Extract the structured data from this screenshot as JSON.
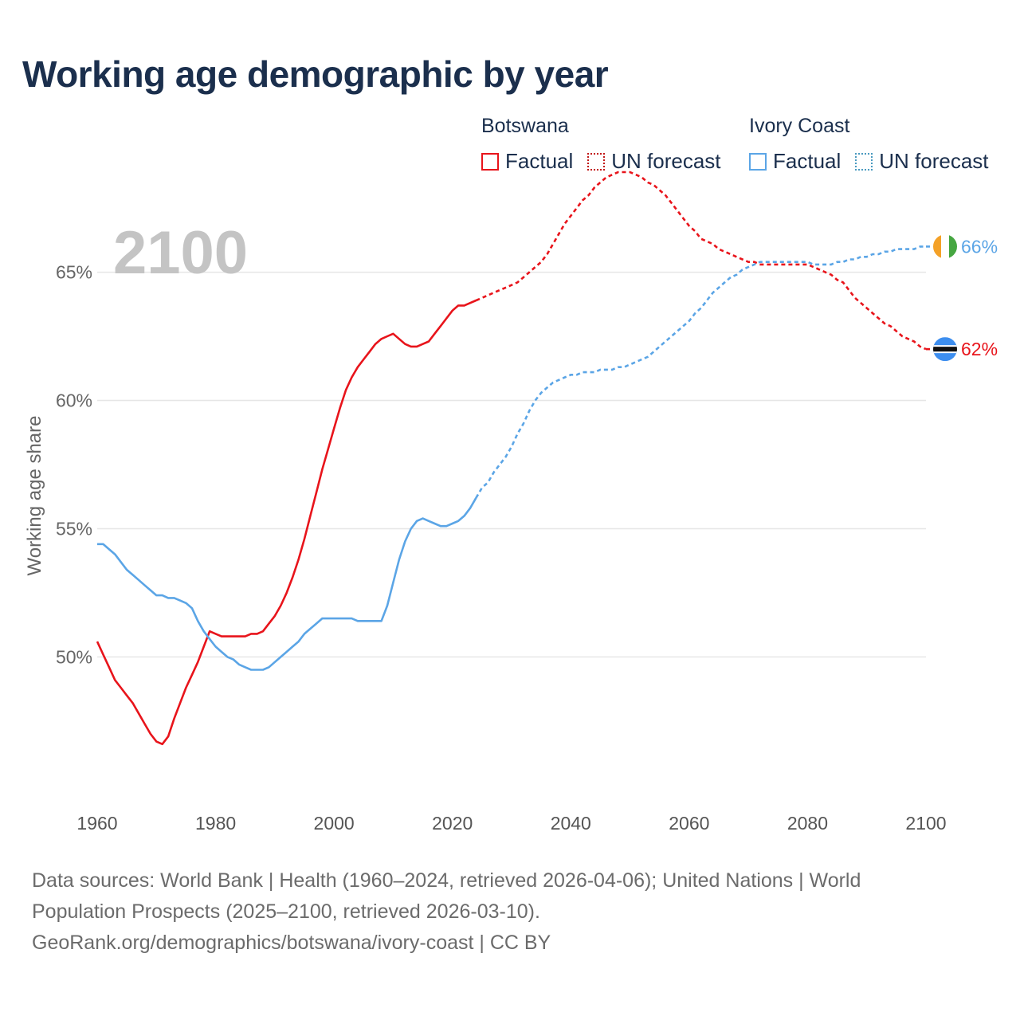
{
  "header": {
    "title": "Working age demographic by year"
  },
  "legend": {
    "groups": [
      {
        "country": "Botswana",
        "factual_label": "Factual",
        "forecast_label": "UN forecast",
        "color": "#e8141b"
      },
      {
        "country": "Ivory Coast",
        "factual_label": "Factual",
        "forecast_label": "UN forecast",
        "color": "#5ba5e6"
      }
    ]
  },
  "footer": {
    "line1": "Data sources: World Bank | Health (1960–2024, retrieved 2026-04-06); United Nations | World",
    "line2": "Population Prospects (2025–2100, retrieved 2026-03-10).",
    "line3": "GeoRank.org/demographics/botswana/ivory-coast | CC BY"
  },
  "chart_data": {
    "type": "line",
    "title": "Working age demographic by year",
    "ylabel": "Working age share",
    "xlabel": "",
    "year_watermark": "2100",
    "xlim": [
      1960,
      2100
    ],
    "ylim": [
      44.7,
      68.0
    ],
    "x_ticks": [
      {
        "value": 1960,
        "label": "1960"
      },
      {
        "value": 1980,
        "label": "1980"
      },
      {
        "value": 2000,
        "label": "2000"
      },
      {
        "value": 2020,
        "label": "2020"
      },
      {
        "value": 2040,
        "label": "2040"
      },
      {
        "value": 2060,
        "label": "2060"
      },
      {
        "value": 2080,
        "label": "2080"
      },
      {
        "value": 2100,
        "label": "2100"
      }
    ],
    "y_ticks": [
      {
        "value": 50,
        "label": "50%"
      },
      {
        "value": 55,
        "label": "55%"
      },
      {
        "value": 60,
        "label": "60%"
      },
      {
        "value": 65,
        "label": "65%"
      }
    ],
    "forecast_start": 2024,
    "series": [
      {
        "name": "Botswana",
        "color": "#e8141b",
        "end_label": "62%",
        "flag": "botswana",
        "points": [
          [
            1960,
            50.6
          ],
          [
            1961,
            50.1
          ],
          [
            1962,
            49.6
          ],
          [
            1963,
            49.1
          ],
          [
            1964,
            48.8
          ],
          [
            1965,
            48.5
          ],
          [
            1966,
            48.2
          ],
          [
            1967,
            47.8
          ],
          [
            1968,
            47.4
          ],
          [
            1969,
            47.0
          ],
          [
            1970,
            46.7
          ],
          [
            1971,
            46.6
          ],
          [
            1972,
            46.9
          ],
          [
            1973,
            47.6
          ],
          [
            1974,
            48.2
          ],
          [
            1975,
            48.8
          ],
          [
            1976,
            49.3
          ],
          [
            1977,
            49.8
          ],
          [
            1978,
            50.4
          ],
          [
            1979,
            51.0
          ],
          [
            1980,
            50.9
          ],
          [
            1981,
            50.8
          ],
          [
            1982,
            50.8
          ],
          [
            1983,
            50.8
          ],
          [
            1984,
            50.8
          ],
          [
            1985,
            50.8
          ],
          [
            1986,
            50.9
          ],
          [
            1987,
            50.9
          ],
          [
            1988,
            51.0
          ],
          [
            1989,
            51.3
          ],
          [
            1990,
            51.6
          ],
          [
            1991,
            52.0
          ],
          [
            1992,
            52.5
          ],
          [
            1993,
            53.1
          ],
          [
            1994,
            53.8
          ],
          [
            1995,
            54.6
          ],
          [
            1996,
            55.5
          ],
          [
            1997,
            56.4
          ],
          [
            1998,
            57.3
          ],
          [
            1999,
            58.1
          ],
          [
            2000,
            58.9
          ],
          [
            2001,
            59.7
          ],
          [
            2002,
            60.4
          ],
          [
            2003,
            60.9
          ],
          [
            2004,
            61.3
          ],
          [
            2005,
            61.6
          ],
          [
            2006,
            61.9
          ],
          [
            2007,
            62.2
          ],
          [
            2008,
            62.4
          ],
          [
            2009,
            62.5
          ],
          [
            2010,
            62.6
          ],
          [
            2011,
            62.4
          ],
          [
            2012,
            62.2
          ],
          [
            2013,
            62.1
          ],
          [
            2014,
            62.1
          ],
          [
            2015,
            62.2
          ],
          [
            2016,
            62.3
          ],
          [
            2017,
            62.6
          ],
          [
            2018,
            62.9
          ],
          [
            2019,
            63.2
          ],
          [
            2020,
            63.5
          ],
          [
            2021,
            63.7
          ],
          [
            2022,
            63.7
          ],
          [
            2023,
            63.8
          ],
          [
            2024,
            63.9
          ],
          [
            2025,
            64.0
          ],
          [
            2026,
            64.1
          ],
          [
            2027,
            64.2
          ],
          [
            2028,
            64.3
          ],
          [
            2029,
            64.4
          ],
          [
            2030,
            64.5
          ],
          [
            2031,
            64.6
          ],
          [
            2032,
            64.8
          ],
          [
            2033,
            65.0
          ],
          [
            2034,
            65.2
          ],
          [
            2035,
            65.4
          ],
          [
            2036,
            65.7
          ],
          [
            2037,
            66.1
          ],
          [
            2038,
            66.5
          ],
          [
            2039,
            66.9
          ],
          [
            2040,
            67.2
          ],
          [
            2041,
            67.5
          ],
          [
            2042,
            67.8
          ],
          [
            2043,
            68.0
          ],
          [
            2044,
            68.3
          ],
          [
            2045,
            68.5
          ],
          [
            2046,
            68.7
          ],
          [
            2047,
            68.8
          ],
          [
            2048,
            68.9
          ],
          [
            2049,
            68.9
          ],
          [
            2050,
            68.9
          ],
          [
            2051,
            68.8
          ],
          [
            2052,
            68.7
          ],
          [
            2053,
            68.5
          ],
          [
            2054,
            68.4
          ],
          [
            2055,
            68.2
          ],
          [
            2056,
            68.0
          ],
          [
            2057,
            67.7
          ],
          [
            2058,
            67.4
          ],
          [
            2059,
            67.1
          ],
          [
            2060,
            66.8
          ],
          [
            2061,
            66.6
          ],
          [
            2062,
            66.3
          ],
          [
            2063,
            66.2
          ],
          [
            2064,
            66.1
          ],
          [
            2065,
            65.9
          ],
          [
            2066,
            65.8
          ],
          [
            2067,
            65.7
          ],
          [
            2068,
            65.6
          ],
          [
            2069,
            65.5
          ],
          [
            2070,
            65.4
          ],
          [
            2071,
            65.4
          ],
          [
            2072,
            65.3
          ],
          [
            2073,
            65.3
          ],
          [
            2074,
            65.3
          ],
          [
            2075,
            65.3
          ],
          [
            2076,
            65.3
          ],
          [
            2077,
            65.3
          ],
          [
            2078,
            65.3
          ],
          [
            2079,
            65.3
          ],
          [
            2080,
            65.3
          ],
          [
            2081,
            65.2
          ],
          [
            2082,
            65.1
          ],
          [
            2083,
            65.0
          ],
          [
            2084,
            64.9
          ],
          [
            2085,
            64.7
          ],
          [
            2086,
            64.6
          ],
          [
            2087,
            64.3
          ],
          [
            2088,
            64.0
          ],
          [
            2089,
            63.8
          ],
          [
            2090,
            63.6
          ],
          [
            2091,
            63.4
          ],
          [
            2092,
            63.2
          ],
          [
            2093,
            63.0
          ],
          [
            2094,
            62.9
          ],
          [
            2095,
            62.7
          ],
          [
            2096,
            62.5
          ],
          [
            2097,
            62.4
          ],
          [
            2098,
            62.3
          ],
          [
            2099,
            62.1
          ],
          [
            2100,
            62.0
          ]
        ]
      },
      {
        "name": "Ivory Coast",
        "color": "#5ba5e6",
        "end_label": "66%",
        "flag": "ivory-coast",
        "points": [
          [
            1960,
            54.4
          ],
          [
            1961,
            54.4
          ],
          [
            1962,
            54.2
          ],
          [
            1963,
            54.0
          ],
          [
            1964,
            53.7
          ],
          [
            1965,
            53.4
          ],
          [
            1966,
            53.2
          ],
          [
            1967,
            53.0
          ],
          [
            1968,
            52.8
          ],
          [
            1969,
            52.6
          ],
          [
            1970,
            52.4
          ],
          [
            1971,
            52.4
          ],
          [
            1972,
            52.3
          ],
          [
            1973,
            52.3
          ],
          [
            1974,
            52.2
          ],
          [
            1975,
            52.1
          ],
          [
            1976,
            51.9
          ],
          [
            1977,
            51.4
          ],
          [
            1978,
            51.0
          ],
          [
            1979,
            50.7
          ],
          [
            1980,
            50.4
          ],
          [
            1981,
            50.2
          ],
          [
            1982,
            50.0
          ],
          [
            1983,
            49.9
          ],
          [
            1984,
            49.7
          ],
          [
            1985,
            49.6
          ],
          [
            1986,
            49.5
          ],
          [
            1987,
            49.5
          ],
          [
            1988,
            49.5
          ],
          [
            1989,
            49.6
          ],
          [
            1990,
            49.8
          ],
          [
            1991,
            50.0
          ],
          [
            1992,
            50.2
          ],
          [
            1993,
            50.4
          ],
          [
            1994,
            50.6
          ],
          [
            1995,
            50.9
          ],
          [
            1996,
            51.1
          ],
          [
            1997,
            51.3
          ],
          [
            1998,
            51.5
          ],
          [
            1999,
            51.5
          ],
          [
            2000,
            51.5
          ],
          [
            2001,
            51.5
          ],
          [
            2002,
            51.5
          ],
          [
            2003,
            51.5
          ],
          [
            2004,
            51.4
          ],
          [
            2005,
            51.4
          ],
          [
            2006,
            51.4
          ],
          [
            2007,
            51.4
          ],
          [
            2008,
            51.4
          ],
          [
            2009,
            52.0
          ],
          [
            2010,
            52.9
          ],
          [
            2011,
            53.8
          ],
          [
            2012,
            54.5
          ],
          [
            2013,
            55.0
          ],
          [
            2014,
            55.3
          ],
          [
            2015,
            55.4
          ],
          [
            2016,
            55.3
          ],
          [
            2017,
            55.2
          ],
          [
            2018,
            55.1
          ],
          [
            2019,
            55.1
          ],
          [
            2020,
            55.2
          ],
          [
            2021,
            55.3
          ],
          [
            2022,
            55.5
          ],
          [
            2023,
            55.8
          ],
          [
            2024,
            56.2
          ],
          [
            2025,
            56.6
          ],
          [
            2026,
            56.8
          ],
          [
            2027,
            57.2
          ],
          [
            2028,
            57.5
          ],
          [
            2029,
            57.8
          ],
          [
            2030,
            58.2
          ],
          [
            2031,
            58.7
          ],
          [
            2032,
            59.1
          ],
          [
            2033,
            59.6
          ],
          [
            2034,
            60.0
          ],
          [
            2035,
            60.3
          ],
          [
            2036,
            60.5
          ],
          [
            2037,
            60.7
          ],
          [
            2038,
            60.8
          ],
          [
            2039,
            60.9
          ],
          [
            2040,
            61.0
          ],
          [
            2041,
            61.0
          ],
          [
            2042,
            61.1
          ],
          [
            2043,
            61.1
          ],
          [
            2044,
            61.1
          ],
          [
            2045,
            61.2
          ],
          [
            2046,
            61.2
          ],
          [
            2047,
            61.2
          ],
          [
            2048,
            61.3
          ],
          [
            2049,
            61.3
          ],
          [
            2050,
            61.4
          ],
          [
            2051,
            61.5
          ],
          [
            2052,
            61.6
          ],
          [
            2053,
            61.7
          ],
          [
            2054,
            61.9
          ],
          [
            2055,
            62.1
          ],
          [
            2056,
            62.3
          ],
          [
            2057,
            62.5
          ],
          [
            2058,
            62.7
          ],
          [
            2059,
            62.9
          ],
          [
            2060,
            63.1
          ],
          [
            2061,
            63.4
          ],
          [
            2062,
            63.6
          ],
          [
            2063,
            63.9
          ],
          [
            2064,
            64.2
          ],
          [
            2065,
            64.4
          ],
          [
            2066,
            64.6
          ],
          [
            2067,
            64.8
          ],
          [
            2068,
            64.9
          ],
          [
            2069,
            65.1
          ],
          [
            2070,
            65.2
          ],
          [
            2071,
            65.3
          ],
          [
            2072,
            65.4
          ],
          [
            2073,
            65.4
          ],
          [
            2074,
            65.4
          ],
          [
            2075,
            65.4
          ],
          [
            2076,
            65.4
          ],
          [
            2077,
            65.4
          ],
          [
            2078,
            65.4
          ],
          [
            2079,
            65.4
          ],
          [
            2080,
            65.4
          ],
          [
            2081,
            65.3
          ],
          [
            2082,
            65.3
          ],
          [
            2083,
            65.3
          ],
          [
            2084,
            65.3
          ],
          [
            2085,
            65.4
          ],
          [
            2086,
            65.4
          ],
          [
            2087,
            65.5
          ],
          [
            2088,
            65.5
          ],
          [
            2089,
            65.6
          ],
          [
            2090,
            65.6
          ],
          [
            2091,
            65.7
          ],
          [
            2092,
            65.7
          ],
          [
            2093,
            65.8
          ],
          [
            2094,
            65.8
          ],
          [
            2095,
            65.9
          ],
          [
            2096,
            65.9
          ],
          [
            2097,
            65.9
          ],
          [
            2098,
            65.9
          ],
          [
            2099,
            66.0
          ],
          [
            2100,
            66.0
          ]
        ]
      }
    ]
  }
}
